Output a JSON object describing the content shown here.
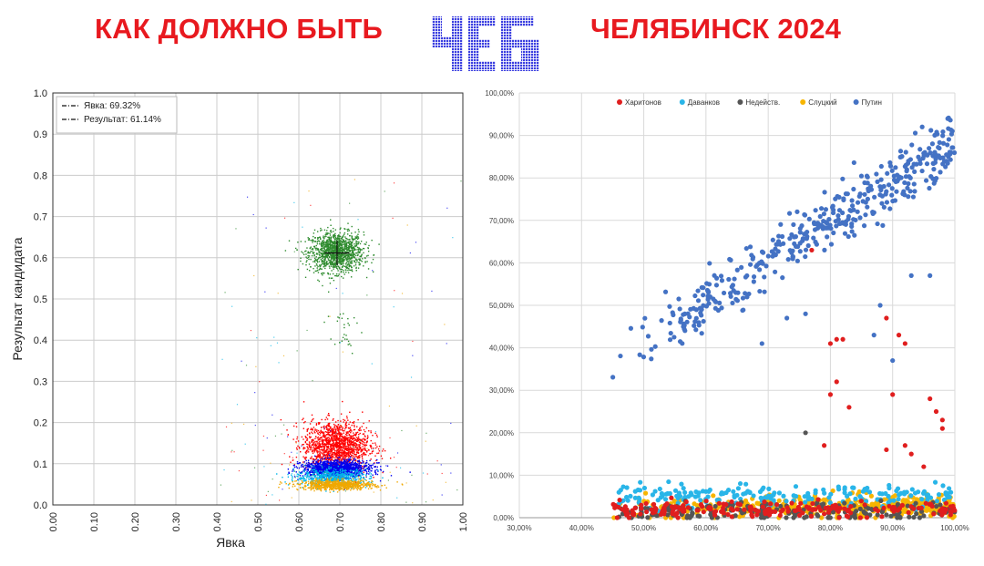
{
  "header": {
    "title_left": "КАК ДОЛЖНО БЫТЬ",
    "logo_text": "ЧЕБ",
    "title_right": "ЧЕЛЯБИНСК 2024"
  },
  "chart_data": [
    {
      "type": "scatter",
      "xlabel": "Явка",
      "ylabel": "Результат кандидата",
      "xlim": [
        0,
        1
      ],
      "ylim": [
        0,
        1
      ],
      "grid": true,
      "xticks": [
        "0.00",
        "0.10",
        "0.20",
        "0.30",
        "0.40",
        "0.50",
        "0.60",
        "0.70",
        "0.80",
        "0.90",
        "1.00"
      ],
      "yticks": [
        "0.0",
        "0.1",
        "0.2",
        "0.3",
        "0.4",
        "0.5",
        "0.6",
        "0.7",
        "0.8",
        "0.9",
        "1.0"
      ],
      "legend_position": "top-left",
      "legend": [
        {
          "label": "Явка: 69.32%",
          "x": 0.6932
        },
        {
          "label": "Результат: 61.14%",
          "y": 0.6114
        }
      ],
      "clusters": [
        {
          "color": "#2e8b2e",
          "center": [
            0.69,
            0.615
          ],
          "spread": [
            0.033,
            0.024
          ],
          "count": 1300
        },
        {
          "color": "#ff0000",
          "center": [
            0.69,
            0.145
          ],
          "spread": [
            0.04,
            0.03
          ],
          "count": 1500
        },
        {
          "color": "#0000ee",
          "center": [
            0.69,
            0.09
          ],
          "spread": [
            0.042,
            0.01
          ],
          "count": 1300
        },
        {
          "color": "#00b7e8",
          "center": [
            0.68,
            0.068
          ],
          "spread": [
            0.045,
            0.01
          ],
          "count": 600
        },
        {
          "color": "#f0a800",
          "center": [
            0.69,
            0.05
          ],
          "spread": [
            0.045,
            0.006
          ],
          "count": 800
        },
        {
          "color": "#2e8b2e",
          "center": [
            0.7,
            0.42
          ],
          "spread": [
            0.02,
            0.04
          ],
          "count": 30
        }
      ]
    },
    {
      "type": "scatter",
      "xlim": [
        0.3,
        1.0
      ],
      "ylim": [
        0,
        1.0
      ],
      "grid": true,
      "xticks": [
        "30,00%",
        "40,00%",
        "50,00%",
        "60,00%",
        "70,00%",
        "80,00%",
        "90,00%",
        "100,00%"
      ],
      "yticks": [
        "0,00%",
        "10,00%",
        "20,00%",
        "30,00%",
        "40,00%",
        "50,00%",
        "60,00%",
        "70,00%",
        "80,00%",
        "90,00%",
        "100,00%"
      ],
      "legend_position": "top",
      "series": [
        {
          "name": "Харитонов",
          "color": "#e01e1e"
        },
        {
          "name": "Даванков",
          "color": "#29b5e8"
        },
        {
          "name": "Недейств.",
          "color": "#555555"
        },
        {
          "name": "Слуцкий",
          "color": "#f7b500"
        },
        {
          "name": "Путин",
          "color": "#4472c4"
        }
      ],
      "trend": {
        "Путин": {
          "from": [
            0.45,
            0.37
          ],
          "to": [
            1.0,
            0.88
          ],
          "spread": 0.035
        },
        "Харитонов": {
          "base": 0.02,
          "outliers": [
            [
              0.77,
              0.63
            ],
            [
              0.8,
              0.41
            ],
            [
              0.81,
              0.42
            ],
            [
              0.82,
              0.42
            ],
            [
              0.83,
              0.26
            ],
            [
              0.8,
              0.29
            ],
            [
              0.81,
              0.32
            ],
            [
              0.79,
              0.17
            ],
            [
              0.89,
              0.47
            ],
            [
              0.91,
              0.43
            ],
            [
              0.92,
              0.41
            ],
            [
              0.9,
              0.29
            ],
            [
              0.96,
              0.28
            ],
            [
              0.97,
              0.25
            ],
            [
              0.98,
              0.23
            ],
            [
              0.98,
              0.21
            ],
            [
              0.92,
              0.17
            ],
            [
              0.93,
              0.15
            ],
            [
              0.95,
              0.12
            ],
            [
              0.89,
              0.16
            ]
          ]
        },
        "Недейств.": {
          "outliers": [
            [
              0.76,
              0.2
            ]
          ]
        }
      }
    }
  ]
}
